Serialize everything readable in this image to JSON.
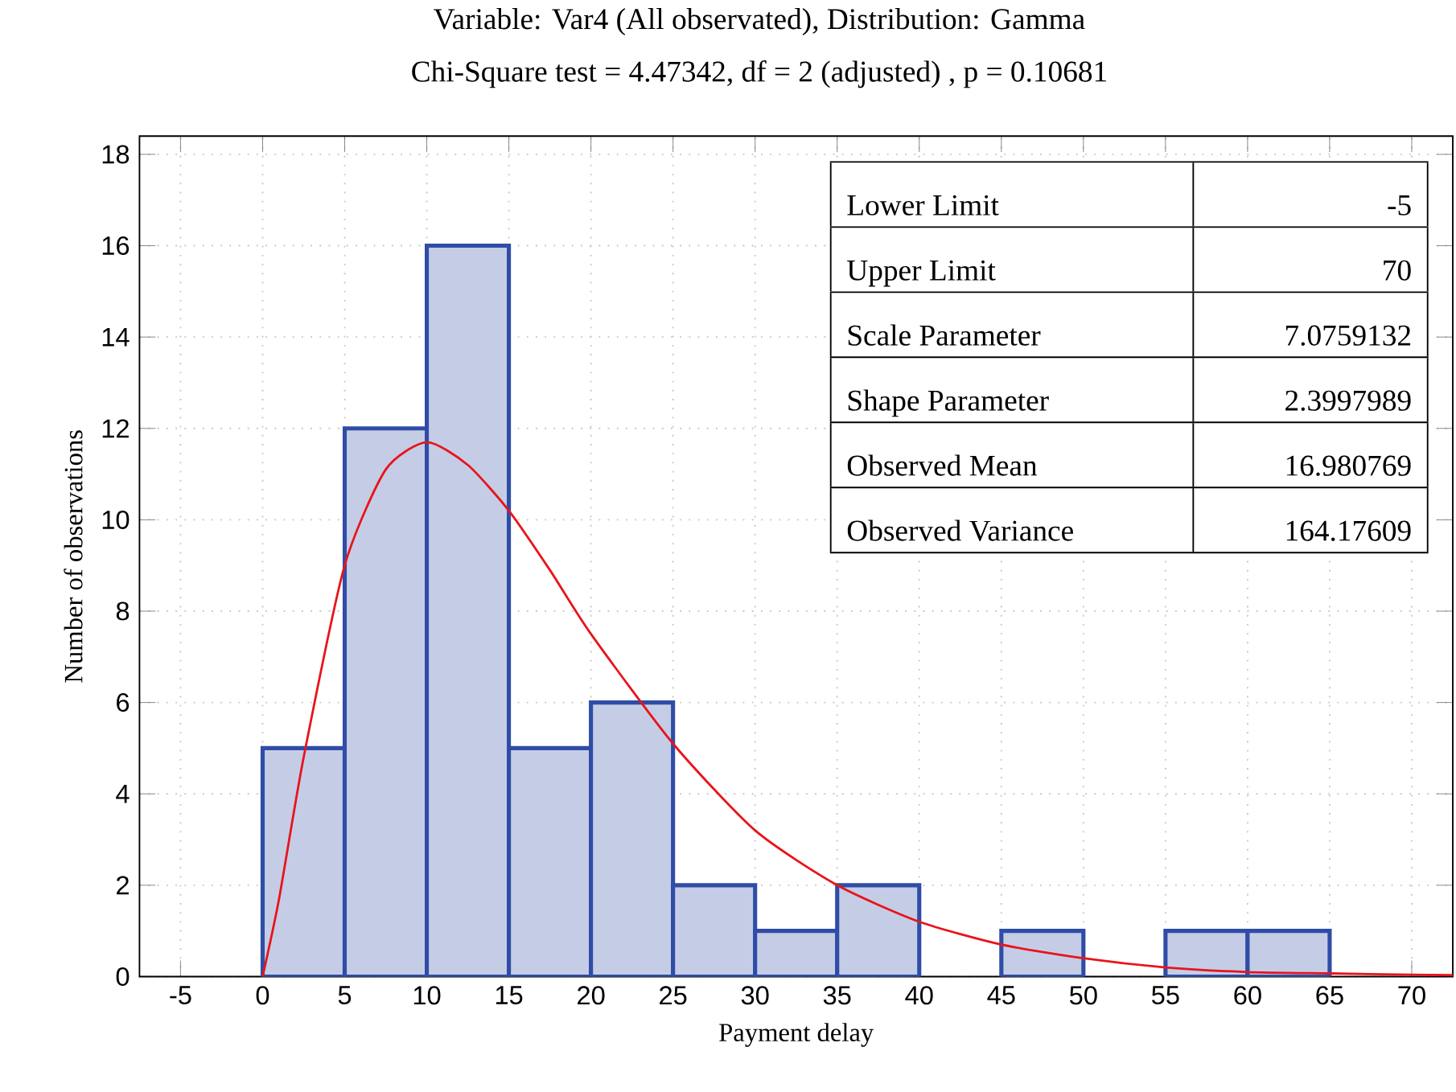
{
  "chart_data": {
    "type": "histogram",
    "title": "Variable: Var4 (All observated), Distribution: Gamma",
    "subtitle": "Chi-Square test = 4.47342, df = 2 (adjusted) , p = 0.10681",
    "xlabel": "Payment delay",
    "ylabel": "Number of observations",
    "bins": [
      0,
      5,
      10,
      15,
      20,
      25,
      30,
      35,
      40,
      45,
      50,
      55,
      60,
      65
    ],
    "values": [
      5,
      12,
      16,
      5,
      6,
      2,
      1,
      2,
      0,
      1,
      0,
      1,
      1
    ],
    "color": "#2f4da6",
    "series": [
      {
        "type": "line",
        "color": "#e8141c",
        "x": [
          0,
          1,
          2.5,
          5,
          7.5,
          10,
          12.5,
          15,
          17.5,
          20,
          25,
          30,
          35,
          40,
          45,
          50,
          55,
          60,
          65,
          70,
          72.5
        ],
        "values": [
          0,
          1.7,
          4.8,
          9.0,
          11.1,
          11.7,
          11.2,
          10.2,
          8.9,
          7.5,
          5.1,
          3.2,
          2.0,
          1.2,
          0.7,
          0.4,
          0.2,
          0.1,
          0.07,
          0.04,
          0.03
        ]
      }
    ],
    "xlim": [
      -7.5,
      72.5
    ],
    "xticks": [
      -5,
      0,
      5,
      10,
      15,
      20,
      25,
      30,
      35,
      40,
      45,
      50,
      55,
      60,
      65,
      70
    ],
    "ylim": [
      0,
      18.4
    ],
    "yticks": [
      0,
      2,
      4,
      6,
      8,
      10,
      12,
      14,
      16,
      18
    ],
    "grid": true,
    "marker": "none",
    "annotations": [
      "Lower Limit",
      "-5",
      "Upper Limit",
      "70",
      "Scale Parameter",
      "7.0759132",
      "Shape Parameter",
      "2.3997989",
      "Observed Mean",
      "16.980769",
      "Observed Variance",
      "164.17609"
    ]
  }
}
